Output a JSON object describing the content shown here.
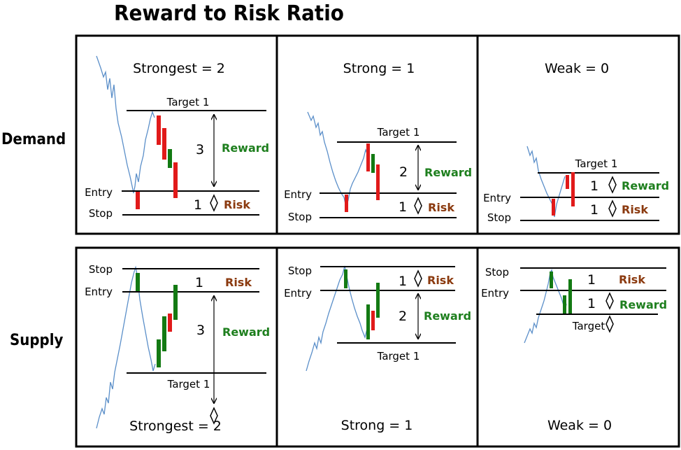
{
  "title": "Reward to Risk Ratio",
  "rows": {
    "demand": "Demand",
    "supply": "Supply"
  },
  "colors": {
    "red": "#e11a1a",
    "green": "#137a13",
    "reward_text": "#1e7f1e",
    "risk_text": "#8b3a0f",
    "price_line": "#5b8fc9"
  },
  "demand": {
    "strongest": {
      "heading": "Strongest = 2",
      "target_label": "Target 1",
      "entry_label": "Entry",
      "stop_label": "Stop",
      "reward_value": "3",
      "reward_label": "Reward",
      "risk_value": "1",
      "risk_label": "Risk"
    },
    "strong": {
      "heading": "Strong = 1",
      "target_label": "Target 1",
      "entry_label": "Entry",
      "stop_label": "Stop",
      "reward_value": "2",
      "reward_label": "Reward",
      "risk_value": "1",
      "risk_label": "Risk"
    },
    "weak": {
      "heading": "Weak = 0",
      "target_label": "Target 1",
      "entry_label": "Entry",
      "stop_label": "Stop",
      "reward_value": "1",
      "reward_label": "Reward",
      "risk_value": "1",
      "risk_label": "Risk"
    }
  },
  "supply": {
    "strongest": {
      "heading": "Strongest = 2",
      "target_label": "Target 1",
      "entry_label": "Entry",
      "stop_label": "Stop",
      "reward_value": "3",
      "reward_label": "Reward",
      "risk_value": "1",
      "risk_label": "Risk"
    },
    "strong": {
      "heading": "Strong = 1",
      "target_label": "Target 1",
      "entry_label": "Entry",
      "stop_label": "Stop",
      "reward_value": "2",
      "reward_label": "Reward",
      "risk_value": "1",
      "risk_label": "Risk"
    },
    "weak": {
      "heading": "Weak = 0",
      "target_label": "Target",
      "entry_label": "Entry",
      "stop_label": "Stop",
      "reward_value": "1",
      "reward_label": "Reward",
      "risk_value": "1",
      "risk_label": "Risk"
    }
  }
}
